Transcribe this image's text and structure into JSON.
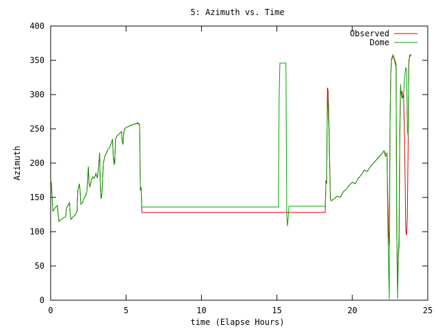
{
  "chart_data": {
    "type": "line",
    "title": "5: Azimuth vs. Time",
    "xlabel": "time (Elapse Hours)",
    "ylabel": "Azimuth",
    "xlim": [
      0,
      25
    ],
    "ylim": [
      0,
      400
    ],
    "xticks": [
      0,
      5,
      10,
      15,
      20,
      25
    ],
    "yticks": [
      0,
      50,
      100,
      150,
      200,
      250,
      300,
      350,
      400
    ],
    "grid": false,
    "legend_position": "top-right",
    "series": [
      {
        "name": "Observed",
        "color": "#cc0000",
        "points": [
          [
            0,
            165
          ],
          [
            0.05,
            170
          ],
          [
            0.1,
            150
          ],
          [
            0.15,
            130
          ],
          [
            0.3,
            135
          ],
          [
            0.45,
            138
          ],
          [
            0.5,
            125
          ],
          [
            0.55,
            115
          ],
          [
            0.7,
            118
          ],
          [
            0.85,
            120
          ],
          [
            1.0,
            122
          ],
          [
            1.05,
            135
          ],
          [
            1.1,
            136
          ],
          [
            1.2,
            140
          ],
          [
            1.25,
            143
          ],
          [
            1.3,
            125
          ],
          [
            1.35,
            118
          ],
          [
            1.5,
            122
          ],
          [
            1.65,
            125
          ],
          [
            1.75,
            130
          ],
          [
            1.8,
            160
          ],
          [
            1.85,
            165
          ],
          [
            1.9,
            170
          ],
          [
            1.95,
            160
          ],
          [
            2.0,
            140
          ],
          [
            2.1,
            142
          ],
          [
            2.2,
            148
          ],
          [
            2.3,
            152
          ],
          [
            2.4,
            158
          ],
          [
            2.5,
            195
          ],
          [
            2.55,
            170
          ],
          [
            2.6,
            165
          ],
          [
            2.7,
            175
          ],
          [
            2.8,
            180
          ],
          [
            2.9,
            178
          ],
          [
            3.0,
            185
          ],
          [
            3.1,
            178
          ],
          [
            3.2,
            200
          ],
          [
            3.25,
            215
          ],
          [
            3.3,
            160
          ],
          [
            3.35,
            148
          ],
          [
            3.4,
            155
          ],
          [
            3.5,
            200
          ],
          [
            3.55,
            205
          ],
          [
            3.6,
            210
          ],
          [
            3.7,
            215
          ],
          [
            3.8,
            220
          ],
          [
            3.9,
            222
          ],
          [
            4.0,
            228
          ],
          [
            4.1,
            235
          ],
          [
            4.15,
            210
          ],
          [
            4.2,
            205
          ],
          [
            4.25,
            200
          ],
          [
            4.3,
            235
          ],
          [
            4.4,
            240
          ],
          [
            4.5,
            242
          ],
          [
            4.6,
            244
          ],
          [
            4.7,
            246
          ],
          [
            4.75,
            230
          ],
          [
            4.8,
            228
          ],
          [
            4.85,
            245
          ],
          [
            4.9,
            250
          ],
          [
            5.0,
            252
          ],
          [
            5.2,
            254
          ],
          [
            5.4,
            256
          ],
          [
            5.6,
            257
          ],
          [
            5.8,
            258
          ],
          [
            5.9,
            255
          ],
          [
            5.95,
            160
          ],
          [
            6.0,
            165
          ],
          [
            6.05,
            128
          ],
          [
            15.0,
            128
          ],
          [
            16.0,
            128
          ],
          [
            17.0,
            128
          ],
          [
            18.2,
            128
          ],
          [
            18.25,
            175
          ],
          [
            18.3,
            170
          ],
          [
            18.35,
            310
          ],
          [
            18.4,
            305
          ],
          [
            18.45,
            260
          ],
          [
            18.5,
            200
          ],
          [
            18.55,
            150
          ],
          [
            18.6,
            145
          ],
          [
            18.8,
            148
          ],
          [
            19.0,
            152
          ],
          [
            19.2,
            150
          ],
          [
            19.4,
            158
          ],
          [
            19.6,
            162
          ],
          [
            19.8,
            168
          ],
          [
            20.0,
            172
          ],
          [
            20.2,
            170
          ],
          [
            20.4,
            178
          ],
          [
            20.6,
            183
          ],
          [
            20.8,
            190
          ],
          [
            21.0,
            188
          ],
          [
            21.2,
            195
          ],
          [
            21.4,
            200
          ],
          [
            21.6,
            205
          ],
          [
            21.8,
            210
          ],
          [
            22.0,
            215
          ],
          [
            22.1,
            218
          ],
          [
            22.2,
            210
          ],
          [
            22.3,
            212
          ],
          [
            22.35,
            150
          ],
          [
            22.4,
            100
          ],
          [
            22.45,
            80
          ],
          [
            22.5,
            250
          ],
          [
            22.55,
            330
          ],
          [
            22.6,
            350
          ],
          [
            22.7,
            357
          ],
          [
            22.8,
            350
          ],
          [
            22.9,
            340
          ],
          [
            22.95,
            100
          ],
          [
            23.0,
            20
          ],
          [
            23.05,
            60
          ],
          [
            23.1,
            80
          ],
          [
            23.15,
            240
          ],
          [
            23.2,
            310
          ],
          [
            23.25,
            300
          ],
          [
            23.3,
            305
          ],
          [
            23.35,
            295
          ],
          [
            23.4,
            300
          ],
          [
            23.45,
            250
          ],
          [
            23.5,
            180
          ],
          [
            23.55,
            100
          ],
          [
            23.6,
            95
          ],
          [
            23.65,
            120
          ],
          [
            23.7,
            220
          ],
          [
            23.75,
            350
          ],
          [
            23.8,
            355
          ],
          [
            23.9,
            358
          ]
        ]
      },
      {
        "name": "Dome",
        "color": "#00a000",
        "points": [
          [
            0,
            168
          ],
          [
            0.05,
            172
          ],
          [
            0.1,
            150
          ],
          [
            0.15,
            130
          ],
          [
            0.3,
            135
          ],
          [
            0.45,
            138
          ],
          [
            0.5,
            125
          ],
          [
            0.55,
            115
          ],
          [
            0.7,
            118
          ],
          [
            0.85,
            120
          ],
          [
            1.0,
            122
          ],
          [
            1.05,
            135
          ],
          [
            1.1,
            136
          ],
          [
            1.2,
            140
          ],
          [
            1.25,
            143
          ],
          [
            1.3,
            125
          ],
          [
            1.35,
            118
          ],
          [
            1.5,
            122
          ],
          [
            1.65,
            125
          ],
          [
            1.75,
            130
          ],
          [
            1.8,
            160
          ],
          [
            1.85,
            165
          ],
          [
            1.9,
            170
          ],
          [
            1.95,
            160
          ],
          [
            2.0,
            140
          ],
          [
            2.1,
            142
          ],
          [
            2.2,
            148
          ],
          [
            2.3,
            152
          ],
          [
            2.4,
            158
          ],
          [
            2.5,
            195
          ],
          [
            2.55,
            170
          ],
          [
            2.6,
            165
          ],
          [
            2.7,
            175
          ],
          [
            2.8,
            180
          ],
          [
            2.9,
            178
          ],
          [
            3.0,
            185
          ],
          [
            3.1,
            178
          ],
          [
            3.2,
            200
          ],
          [
            3.25,
            215
          ],
          [
            3.3,
            160
          ],
          [
            3.35,
            148
          ],
          [
            3.4,
            155
          ],
          [
            3.5,
            200
          ],
          [
            3.55,
            205
          ],
          [
            3.6,
            210
          ],
          [
            3.7,
            215
          ],
          [
            3.8,
            220
          ],
          [
            3.9,
            222
          ],
          [
            4.0,
            228
          ],
          [
            4.1,
            235
          ],
          [
            4.15,
            210
          ],
          [
            4.2,
            198
          ],
          [
            4.25,
            200
          ],
          [
            4.3,
            235
          ],
          [
            4.4,
            240
          ],
          [
            4.5,
            242
          ],
          [
            4.6,
            244
          ],
          [
            4.7,
            246
          ],
          [
            4.75,
            230
          ],
          [
            4.8,
            228
          ],
          [
            4.85,
            245
          ],
          [
            4.9,
            250
          ],
          [
            5.0,
            252
          ],
          [
            5.2,
            254
          ],
          [
            5.4,
            256
          ],
          [
            5.6,
            257
          ],
          [
            5.8,
            259
          ],
          [
            5.9,
            256
          ],
          [
            5.95,
            160
          ],
          [
            6.0,
            163
          ],
          [
            6.05,
            136
          ],
          [
            10.0,
            136
          ],
          [
            14.0,
            136
          ],
          [
            15.1,
            136
          ],
          [
            15.15,
            300
          ],
          [
            15.2,
            346
          ],
          [
            15.6,
            346
          ],
          [
            15.65,
            130
          ],
          [
            15.7,
            108
          ],
          [
            15.75,
            120
          ],
          [
            15.8,
            137
          ],
          [
            17.0,
            137
          ],
          [
            18.2,
            137
          ],
          [
            18.25,
            170
          ],
          [
            18.3,
            175
          ],
          [
            18.35,
            300
          ],
          [
            18.4,
            280
          ],
          [
            18.45,
            250
          ],
          [
            18.5,
            190
          ],
          [
            18.55,
            148
          ],
          [
            18.6,
            145
          ],
          [
            18.8,
            148
          ],
          [
            19.0,
            152
          ],
          [
            19.2,
            150
          ],
          [
            19.4,
            158
          ],
          [
            19.6,
            162
          ],
          [
            19.8,
            168
          ],
          [
            20.0,
            172
          ],
          [
            20.2,
            170
          ],
          [
            20.4,
            178
          ],
          [
            20.6,
            183
          ],
          [
            20.8,
            190
          ],
          [
            21.0,
            188
          ],
          [
            21.2,
            195
          ],
          [
            21.4,
            200
          ],
          [
            21.6,
            205
          ],
          [
            21.8,
            210
          ],
          [
            22.0,
            215
          ],
          [
            22.1,
            218
          ],
          [
            22.2,
            213
          ],
          [
            22.3,
            215
          ],
          [
            22.35,
            120
          ],
          [
            22.4,
            55
          ],
          [
            22.45,
            2
          ],
          [
            22.5,
            250
          ],
          [
            22.55,
            330
          ],
          [
            22.6,
            352
          ],
          [
            22.7,
            358
          ],
          [
            22.8,
            352
          ],
          [
            22.9,
            345
          ],
          [
            22.95,
            100
          ],
          [
            23.0,
            2
          ],
          [
            23.05,
            60
          ],
          [
            23.1,
            100
          ],
          [
            23.15,
            250
          ],
          [
            23.2,
            315
          ],
          [
            23.25,
            300
          ],
          [
            23.3,
            295
          ],
          [
            23.35,
            298
          ],
          [
            23.4,
            300
          ],
          [
            23.45,
            320
          ],
          [
            23.5,
            330
          ],
          [
            23.55,
            340
          ],
          [
            23.6,
            335
          ],
          [
            23.65,
            250
          ],
          [
            23.7,
            240
          ],
          [
            23.75,
            345
          ],
          [
            23.8,
            358
          ],
          [
            23.9,
            358
          ]
        ]
      }
    ]
  }
}
